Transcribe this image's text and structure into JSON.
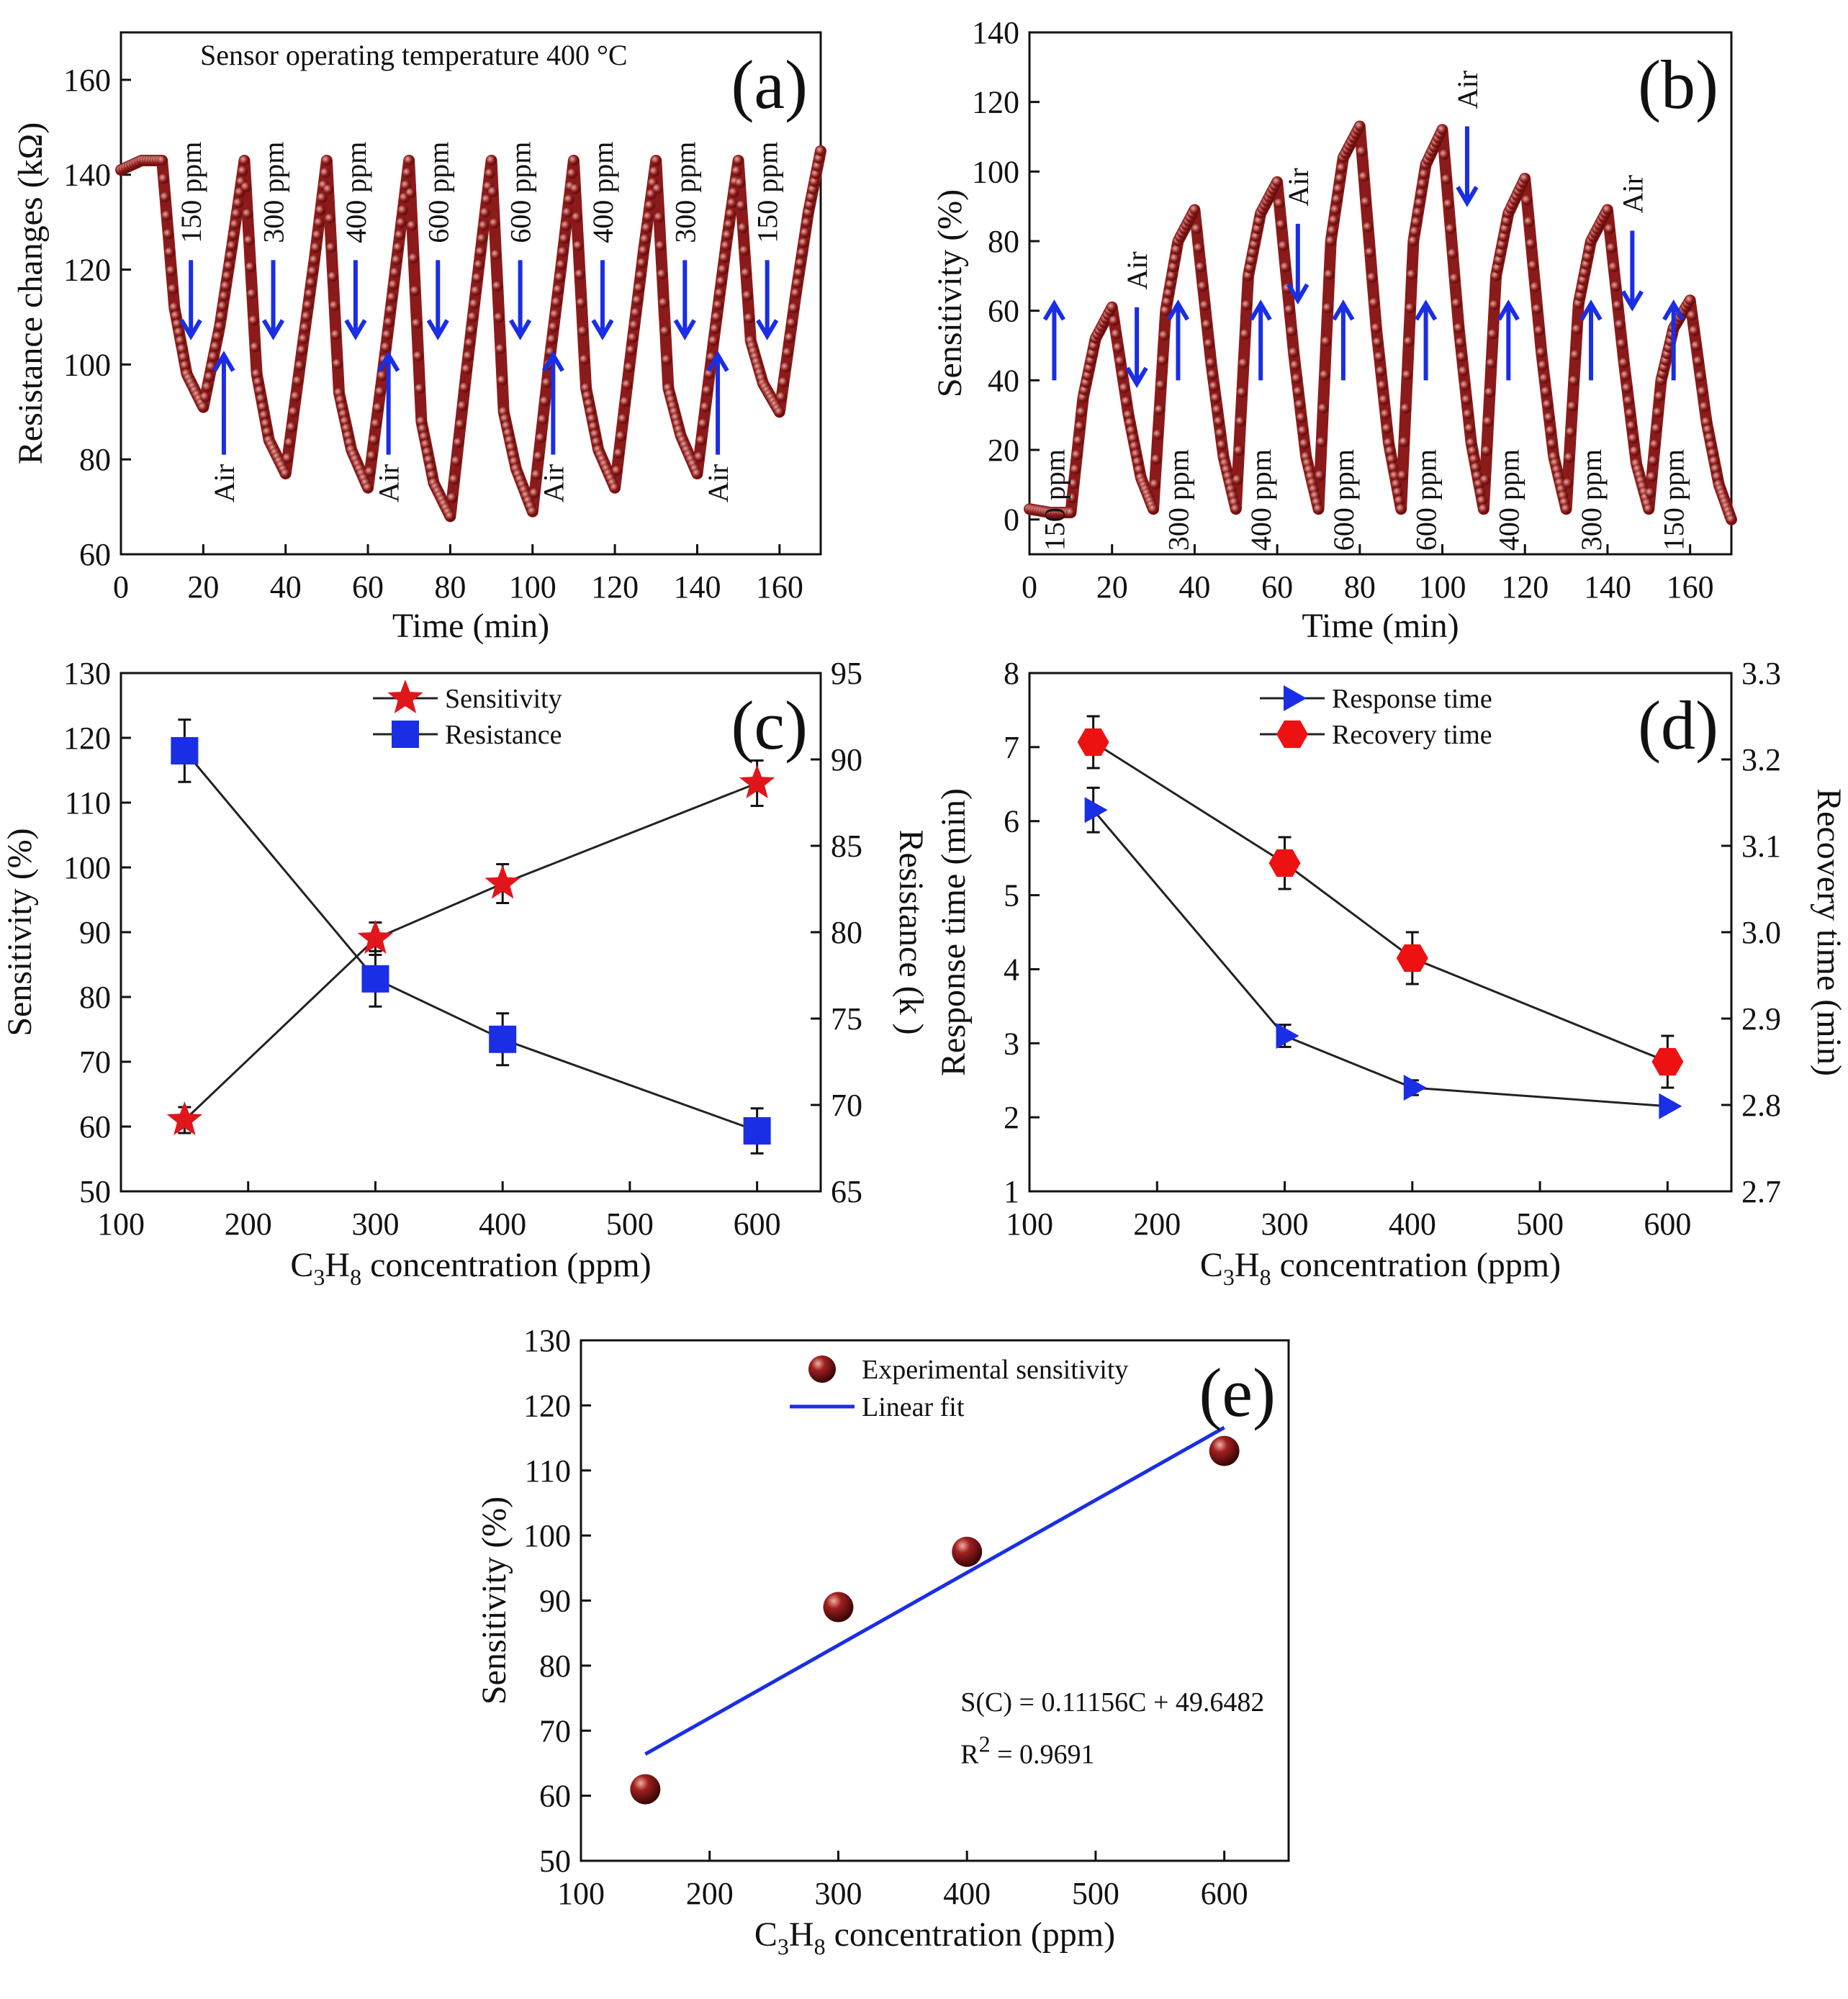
{
  "chart_data": [
    {
      "id": "a",
      "panel_label": "(a)",
      "type": "line",
      "annotation": "Sensor operating temperature 400 °C",
      "xlabel": "Time (min)",
      "ylabel": "Resistance changes (kΩ)",
      "xlim": [
        0,
        170
      ],
      "ylim": [
        60,
        170
      ],
      "xticks": [
        0,
        20,
        40,
        60,
        80,
        100,
        120,
        140,
        160
      ],
      "yticks": [
        60,
        80,
        100,
        120,
        140,
        160
      ],
      "series": [
        {
          "name": "Resistance",
          "color": "#8b1a1a",
          "x": [
            0,
            5,
            10,
            13,
            16,
            20,
            24,
            27,
            30,
            33,
            36,
            40,
            44,
            47,
            50,
            53,
            56,
            60,
            64,
            67,
            70,
            73,
            76,
            80,
            84,
            87,
            90,
            93,
            96,
            100,
            104,
            107,
            110,
            113,
            116,
            120,
            124,
            127,
            130,
            133,
            136,
            140,
            144,
            147,
            150,
            153,
            156,
            160,
            164,
            167,
            170
          ],
          "y": [
            141,
            143,
            143,
            112,
            98,
            91,
            108,
            125,
            143,
            98,
            84,
            77,
            103,
            122,
            143,
            94,
            82,
            74,
            101,
            122,
            143,
            88,
            75,
            68,
            99,
            121,
            143,
            90,
            78,
            69,
            100,
            121,
            143,
            95,
            82,
            74,
            103,
            124,
            143,
            95,
            85,
            77,
            105,
            125,
            143,
            105,
            96,
            90,
            115,
            132,
            145
          ]
        }
      ],
      "gas_labels": [
        {
          "text": "150 ppm",
          "x": 17
        },
        {
          "text": "300 ppm",
          "x": 37
        },
        {
          "text": "400 ppm",
          "x": 57
        },
        {
          "text": "600 ppm",
          "x": 77
        },
        {
          "text": "600 ppm",
          "x": 97
        },
        {
          "text": "400 ppm",
          "x": 117
        },
        {
          "text": "300 ppm",
          "x": 137
        },
        {
          "text": "150 ppm",
          "x": 157
        }
      ],
      "air_labels": [
        {
          "text": "Air",
          "x": 25
        },
        {
          "text": "Air",
          "x": 65
        },
        {
          "text": "Air",
          "x": 105
        },
        {
          "text": "Air",
          "x": 145
        }
      ]
    },
    {
      "id": "b",
      "panel_label": "(b)",
      "type": "line",
      "xlabel": "Time (min)",
      "ylabel": "Sensitivity (%)",
      "xlim": [
        0,
        170
      ],
      "ylim": [
        -10,
        140
      ],
      "xticks": [
        0,
        20,
        40,
        60,
        80,
        100,
        120,
        140,
        160
      ],
      "yticks": [
        0,
        20,
        40,
        60,
        80,
        100,
        120,
        140
      ],
      "series": [
        {
          "name": "Sensitivity",
          "color": "#8b1a1a",
          "x": [
            0,
            5,
            10,
            13,
            16,
            20,
            24,
            27,
            30,
            33,
            36,
            40,
            44,
            47,
            50,
            53,
            56,
            60,
            64,
            67,
            70,
            73,
            76,
            80,
            84,
            87,
            90,
            93,
            96,
            100,
            104,
            107,
            110,
            113,
            116,
            120,
            124,
            127,
            130,
            133,
            136,
            140,
            144,
            147,
            150,
            153,
            156,
            160,
            164,
            167,
            170
          ],
          "y": [
            3,
            2,
            2,
            35,
            52,
            61,
            30,
            12,
            3,
            60,
            80,
            89,
            45,
            18,
            3,
            70,
            88,
            97,
            48,
            18,
            3,
            80,
            104,
            113,
            55,
            22,
            3,
            80,
            102,
            112,
            55,
            22,
            3,
            70,
            88,
            98,
            48,
            18,
            3,
            62,
            80,
            89,
            45,
            16,
            3,
            40,
            55,
            63,
            28,
            10,
            0
          ]
        }
      ],
      "gas_labels": [
        {
          "text": "150 ppm",
          "x": 6
        },
        {
          "text": "300 ppm",
          "x": 36
        },
        {
          "text": "400 ppm",
          "x": 56
        },
        {
          "text": "600 ppm",
          "x": 76
        },
        {
          "text": "600 ppm",
          "x": 96
        },
        {
          "text": "400 ppm",
          "x": 116
        },
        {
          "text": "300 ppm",
          "x": 136
        },
        {
          "text": "150 ppm",
          "x": 156
        }
      ],
      "air_labels": [
        {
          "text": "Air",
          "x": 26
        },
        {
          "text": "Air",
          "x": 65
        },
        {
          "text": "Air",
          "x": 106
        },
        {
          "text": "Air",
          "x": 146
        }
      ]
    },
    {
      "id": "c",
      "panel_label": "(c)",
      "type": "line",
      "xlabel_main": "C",
      "xlabel_sub1": "3",
      "xlabel_mid": "H",
      "xlabel_sub2": "8",
      "xlabel_rest": " concentration (ppm)",
      "ylabel": "Sensitivity (%)",
      "y2label": "Resistance (k  )",
      "xlim": [
        100,
        650
      ],
      "ylim": [
        50,
        130
      ],
      "y2lim": [
        65,
        95
      ],
      "xticks": [
        100,
        200,
        300,
        400,
        500,
        600
      ],
      "yticks": [
        50,
        60,
        70,
        80,
        90,
        100,
        110,
        120,
        130
      ],
      "y2ticks": [
        65,
        70,
        75,
        80,
        85,
        90,
        95
      ],
      "categories": [
        150,
        300,
        400,
        600
      ],
      "series": [
        {
          "name": "Sensitivity",
          "axis": "left",
          "marker": "star",
          "color": "#e0161b",
          "values": [
            61,
            89,
            97.5,
            113
          ],
          "err": [
            2,
            2.5,
            3,
            3.5
          ]
        },
        {
          "name": "Resistance",
          "axis": "right",
          "marker": "square",
          "color": "#1a2ee6",
          "values": [
            90.5,
            77.3,
            73.8,
            68.5
          ],
          "err": [
            1.8,
            1.6,
            1.5,
            1.3
          ]
        }
      ]
    },
    {
      "id": "d",
      "panel_label": "(d)",
      "type": "line",
      "xlabel_main": "C",
      "xlabel_sub1": "3",
      "xlabel_mid": "H",
      "xlabel_sub2": "8",
      "xlabel_rest": " concentration (ppm)",
      "ylabel": "Response time (min)",
      "y2label": "Recovery time (min)",
      "xlim": [
        100,
        650
      ],
      "ylim": [
        1,
        8
      ],
      "y2lim": [
        2.7,
        3.3
      ],
      "xticks": [
        100,
        200,
        300,
        400,
        500,
        600
      ],
      "yticks": [
        1,
        2,
        3,
        4,
        5,
        6,
        7,
        8
      ],
      "y2ticks": [
        "2.7",
        "2.8",
        "2.9",
        "3.0",
        "3.1",
        "3.2",
        "3.3"
      ],
      "categories": [
        150,
        300,
        400,
        600
      ],
      "series": [
        {
          "name": "Response time",
          "axis": "left",
          "marker": "triangle",
          "color": "#1a2ee6",
          "values": [
            6.15,
            3.1,
            2.4,
            2.15
          ],
          "err": [
            0.3,
            0.15,
            0.1,
            0.05
          ]
        },
        {
          "name": "Recovery time",
          "axis": "right",
          "marker": "hexagon",
          "color": "#ee1111",
          "values": [
            3.22,
            3.08,
            2.97,
            2.85
          ],
          "err": [
            0.03,
            0.03,
            0.03,
            0.03
          ]
        }
      ]
    },
    {
      "id": "e",
      "panel_label": "(e)",
      "type": "scatter",
      "xlabel_main": "C",
      "xlabel_sub1": "3",
      "xlabel_mid": "H",
      "xlabel_sub2": "8",
      "xlabel_rest": " concentration (ppm)",
      "ylabel": "Sensitivity (%)",
      "xlim": [
        100,
        650
      ],
      "ylim": [
        50,
        130
      ],
      "xticks": [
        100,
        200,
        300,
        400,
        500,
        600
      ],
      "yticks": [
        50,
        60,
        70,
        80,
        90,
        100,
        110,
        120,
        130
      ],
      "series": [
        {
          "name": "Experimental sensitivity",
          "marker": "sphere",
          "color": "#8b1a1a",
          "x": [
            150,
            300,
            400,
            600
          ],
          "y": [
            61,
            89,
            97.5,
            113
          ]
        },
        {
          "name": "Linear fit",
          "marker": "line",
          "color": "#1a2ee6",
          "x": [
            150,
            600
          ],
          "y": [
            66.4,
            116.6
          ]
        }
      ],
      "equation": "S(C) = 0.11156C + 49.6482",
      "r2_prefix": "R",
      "r2_sup": "2",
      "r2_value": " = 0.9691"
    }
  ]
}
